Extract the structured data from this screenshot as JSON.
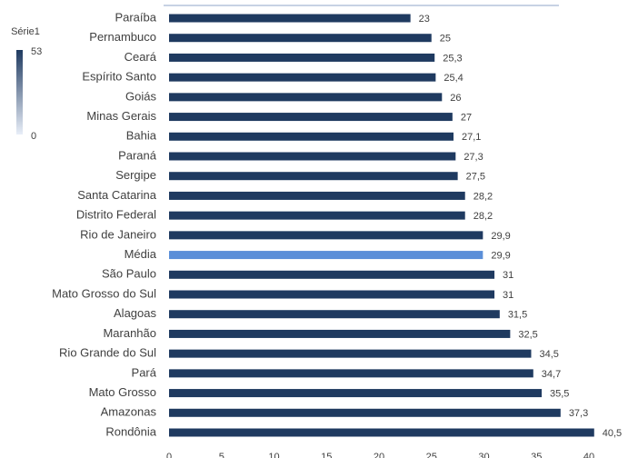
{
  "chart_data": {
    "type": "bar",
    "orientation": "horizontal",
    "categories": [
      "Paraíba",
      "Pernambuco",
      "Ceará",
      "Espírito Santo",
      "Goiás",
      "Minas Gerais",
      "Bahia",
      "Paraná",
      "Sergipe",
      "Santa Catarina",
      "Distrito Federal",
      "Rio de Janeiro",
      "Média",
      "São Paulo",
      "Mato Grosso do Sul",
      "Alagoas",
      "Maranhão",
      "Rio Grande do Sul",
      "Pará",
      "Mato Grosso",
      "Amazonas",
      "Rondônia"
    ],
    "values": [
      23,
      25,
      25.3,
      25.4,
      26,
      27,
      27.1,
      27.3,
      27.5,
      28.2,
      28.2,
      29.9,
      29.9,
      31,
      31,
      31.5,
      32.5,
      34.5,
      34.7,
      35.5,
      37.3,
      40.5
    ],
    "value_labels": [
      "23",
      "25",
      "25,3",
      "25,4",
      "26",
      "27",
      "27,1",
      "27,3",
      "27,5",
      "28,2",
      "28,2",
      "29,9",
      "29,9",
      "31",
      "31",
      "31,5",
      "32,5",
      "34,5",
      "34,7",
      "35,5",
      "37,3",
      "40,5"
    ],
    "colors": [
      "#1f3a60",
      "#1f3a60",
      "#1f3a60",
      "#1f3a60",
      "#1f3a60",
      "#1f3a60",
      "#1f3a60",
      "#1f3a60",
      "#1f3a60",
      "#1f3a60",
      "#1f3a60",
      "#1f3a60",
      "#5b8fd8",
      "#1f3a60",
      "#1f3a60",
      "#1f3a60",
      "#1f3a60",
      "#1f3a60",
      "#1f3a60",
      "#1f3a60",
      "#1f3a60",
      "#1f3a60"
    ],
    "xlim": [
      0,
      45
    ],
    "xticks": [
      0,
      5,
      10,
      15,
      20,
      25,
      30,
      35,
      40
    ],
    "color_scale": {
      "title": "Série1",
      "min": 0,
      "max": 53,
      "colors": [
        "#e8eef8",
        "#1f3a60"
      ]
    }
  }
}
